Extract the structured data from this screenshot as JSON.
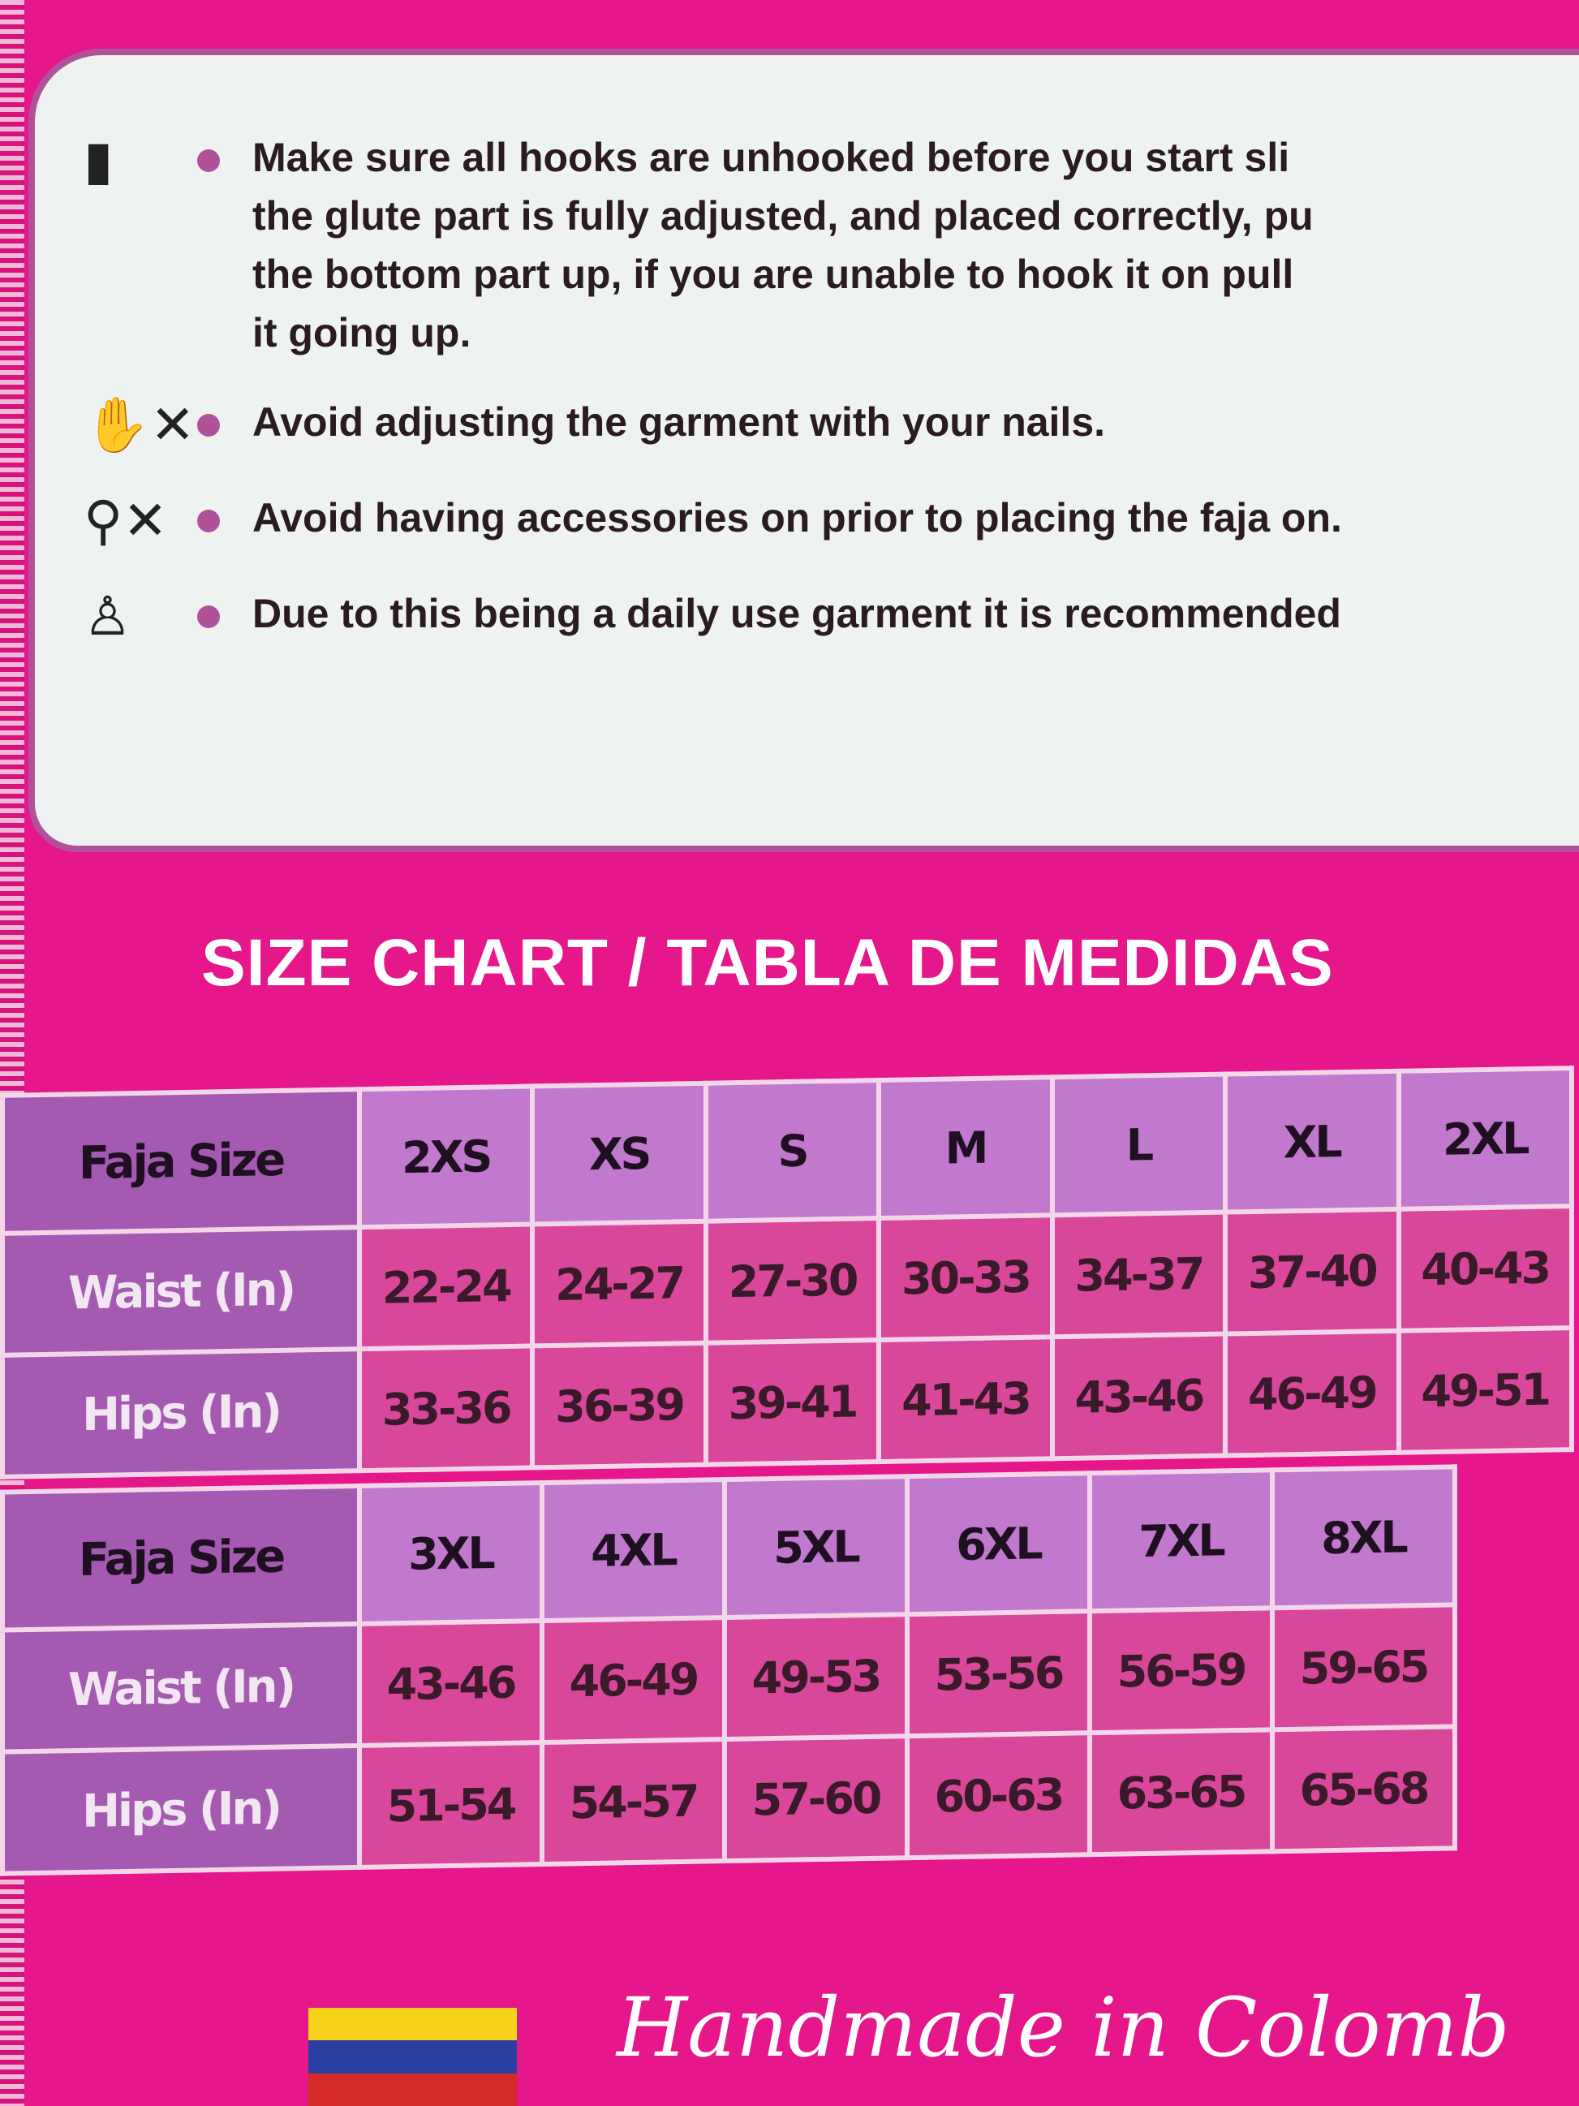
{
  "instructions": [
    {
      "icon": "waist-trainer-icon",
      "lines": [
        "Make sure all hooks are unhooked before you start sli",
        "the glute part is fully adjusted, and placed correctly, pu",
        "the bottom part up, if you are unable to hook it on pull",
        "it going up."
      ]
    },
    {
      "icon": "no-nails-icon",
      "lines": [
        "Avoid adjusting the garment with your nails."
      ]
    },
    {
      "icon": "no-accessories-icon",
      "lines": [
        "Avoid having accessories on prior to placing the faja on."
      ]
    },
    {
      "icon": "garment-icon",
      "lines": [
        "Due to this being a daily use garment it is recommended"
      ]
    }
  ],
  "size_chart": {
    "title": "SIZE CHART / TABLA DE MEDIDAS",
    "row_labels": [
      "Faja Size",
      "Waist (In)",
      "Hips (In)"
    ],
    "table1": {
      "sizes": [
        "2XS",
        "XS",
        "S",
        "M",
        "L",
        "XL",
        "2XL"
      ],
      "waist": [
        "22-24",
        "24-27",
        "27-30",
        "30-33",
        "34-37",
        "37-40",
        "40-43"
      ],
      "hips": [
        "33-36",
        "36-39",
        "39-41",
        "41-43",
        "43-46",
        "46-49",
        "49-51"
      ]
    },
    "table2": {
      "sizes": [
        "3XL",
        "4XL",
        "5XL",
        "6XL",
        "7XL",
        "8XL"
      ],
      "waist": [
        "43-46",
        "46-49",
        "49-53",
        "53-56",
        "56-59",
        "59-65"
      ],
      "hips": [
        "51-54",
        "54-57",
        "57-60",
        "60-63",
        "63-65",
        "65-68"
      ]
    }
  },
  "footer": {
    "text": "Handmade in Colomb"
  },
  "colors": {
    "background": "#e6178a",
    "panel": "#eef3f1",
    "accent": "#b0529a",
    "header_cell": "#c079cc",
    "value_cell": "#d9479a"
  }
}
